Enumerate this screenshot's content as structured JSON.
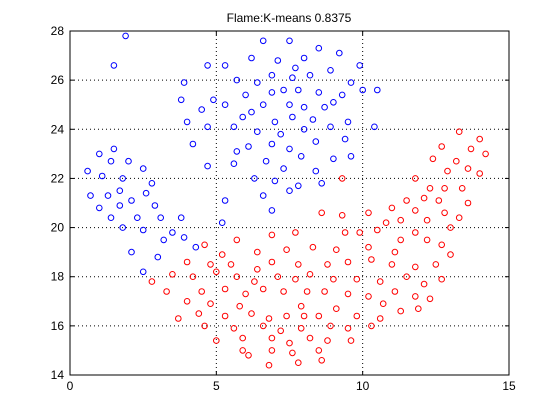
{
  "chart_data": {
    "type": "scatter",
    "title": "Flame:K-means  0.8375",
    "xlabel": "",
    "ylabel": "",
    "xlim": [
      0,
      15
    ],
    "ylim": [
      14,
      28
    ],
    "xticks": [
      0,
      5,
      10,
      15
    ],
    "yticks": [
      14,
      16,
      18,
      20,
      22,
      24,
      26,
      28
    ],
    "grid": true,
    "grid_style": "dotted",
    "marker": "open-circle",
    "series": [
      {
        "color": "#0000ff",
        "points": [
          [
            1.9,
            27.8
          ],
          [
            1.5,
            26.6
          ],
          [
            6.6,
            27.6
          ],
          [
            7.5,
            27.6
          ],
          [
            6.2,
            26.9
          ],
          [
            7.1,
            26.8
          ],
          [
            8.0,
            26.9
          ],
          [
            8.5,
            27.3
          ],
          [
            9.2,
            27.1
          ],
          [
            9.9,
            26.6
          ],
          [
            4.7,
            26.6
          ],
          [
            5.3,
            26.6
          ],
          [
            7.7,
            26.5
          ],
          [
            8.9,
            26.4
          ],
          [
            10.5,
            25.6
          ],
          [
            3.9,
            25.9
          ],
          [
            5.7,
            26.0
          ],
          [
            6.4,
            25.9
          ],
          [
            6.9,
            26.2
          ],
          [
            7.6,
            26.1
          ],
          [
            8.2,
            26.2
          ],
          [
            9.6,
            25.9
          ],
          [
            3.8,
            25.2
          ],
          [
            4.9,
            25.2
          ],
          [
            6.0,
            25.4
          ],
          [
            6.9,
            25.5
          ],
          [
            7.3,
            25.6
          ],
          [
            7.8,
            25.6
          ],
          [
            8.5,
            25.5
          ],
          [
            9.3,
            25.4
          ],
          [
            10.0,
            25.6
          ],
          [
            4.5,
            24.8
          ],
          [
            5.3,
            25.0
          ],
          [
            6.6,
            25.0
          ],
          [
            7.5,
            25.0
          ],
          [
            8.0,
            24.9
          ],
          [
            8.7,
            24.9
          ],
          [
            9.0,
            25.1
          ],
          [
            4.0,
            24.3
          ],
          [
            5.9,
            24.5
          ],
          [
            6.2,
            24.7
          ],
          [
            7.0,
            24.3
          ],
          [
            7.6,
            24.5
          ],
          [
            8.3,
            24.4
          ],
          [
            9.5,
            24.3
          ],
          [
            10.4,
            24.1
          ],
          [
            4.7,
            24.1
          ],
          [
            5.6,
            24.1
          ],
          [
            6.4,
            23.9
          ],
          [
            7.2,
            23.8
          ],
          [
            8.0,
            24.0
          ],
          [
            8.9,
            24.1
          ],
          [
            4.2,
            23.4
          ],
          [
            6.1,
            23.3
          ],
          [
            6.9,
            23.4
          ],
          [
            7.5,
            23.2
          ],
          [
            8.4,
            23.5
          ],
          [
            9.4,
            23.6
          ],
          [
            5.7,
            23.1
          ],
          [
            7.9,
            22.9
          ],
          [
            9.0,
            22.8
          ],
          [
            9.6,
            22.9
          ],
          [
            4.7,
            22.5
          ],
          [
            5.6,
            22.6
          ],
          [
            6.7,
            22.7
          ],
          [
            7.3,
            22.4
          ],
          [
            8.4,
            22.3
          ],
          [
            6.3,
            22.0
          ],
          [
            7.0,
            21.9
          ],
          [
            7.8,
            21.7
          ],
          [
            8.6,
            21.8
          ],
          [
            6.6,
            21.3
          ],
          [
            7.5,
            21.5
          ],
          [
            5.3,
            21.1
          ],
          [
            6.9,
            20.7
          ],
          [
            5.2,
            20.2
          ],
          [
            0.6,
            22.3
          ],
          [
            1.0,
            23.0
          ],
          [
            1.5,
            23.2
          ],
          [
            2.0,
            22.7
          ],
          [
            0.7,
            21.3
          ],
          [
            1.1,
            22.1
          ],
          [
            1.4,
            22.7
          ],
          [
            1.8,
            22.0
          ],
          [
            2.5,
            22.4
          ],
          [
            2.8,
            21.8
          ],
          [
            1.3,
            21.3
          ],
          [
            1.7,
            21.5
          ],
          [
            2.1,
            21.1
          ],
          [
            2.6,
            21.4
          ],
          [
            1.0,
            20.8
          ],
          [
            1.7,
            20.9
          ],
          [
            2.3,
            20.4
          ],
          [
            2.9,
            20.9
          ],
          [
            1.4,
            20.4
          ],
          [
            1.8,
            20.0
          ],
          [
            2.5,
            19.9
          ],
          [
            3.1,
            20.4
          ],
          [
            3.2,
            19.5
          ],
          [
            3.5,
            19.8
          ],
          [
            3.8,
            20.4
          ],
          [
            2.1,
            19.0
          ],
          [
            3.0,
            18.8
          ],
          [
            2.5,
            18.2
          ],
          [
            3.9,
            19.6
          ],
          [
            4.3,
            19.2
          ]
        ]
      },
      {
        "color": "#ff0000",
        "points": [
          [
            13.3,
            23.9
          ],
          [
            13.7,
            23.2
          ],
          [
            14.0,
            23.6
          ],
          [
            12.7,
            23.3
          ],
          [
            14.2,
            23.0
          ],
          [
            12.4,
            22.8
          ],
          [
            13.2,
            22.7
          ],
          [
            12.9,
            22.3
          ],
          [
            13.6,
            22.4
          ],
          [
            14.0,
            22.2
          ],
          [
            11.8,
            22.0
          ],
          [
            12.3,
            21.6
          ],
          [
            12.8,
            21.6
          ],
          [
            13.4,
            21.6
          ],
          [
            9.3,
            22.0
          ],
          [
            11.5,
            21.1
          ],
          [
            12.1,
            21.2
          ],
          [
            12.6,
            21.1
          ],
          [
            13.6,
            21.0
          ],
          [
            11.0,
            20.8
          ],
          [
            11.8,
            20.7
          ],
          [
            12.2,
            20.3
          ],
          [
            12.8,
            20.6
          ],
          [
            13.3,
            20.4
          ],
          [
            8.6,
            20.6
          ],
          [
            9.3,
            20.5
          ],
          [
            10.2,
            20.6
          ],
          [
            10.8,
            20.2
          ],
          [
            11.3,
            20.3
          ],
          [
            13.0,
            20.0
          ],
          [
            9.9,
            19.8
          ],
          [
            10.5,
            19.9
          ],
          [
            11.3,
            19.5
          ],
          [
            11.8,
            19.8
          ],
          [
            12.2,
            19.5
          ],
          [
            12.7,
            19.3
          ],
          [
            4.6,
            19.3
          ],
          [
            5.2,
            18.9
          ],
          [
            6.4,
            19.0
          ],
          [
            7.4,
            19.1
          ],
          [
            8.3,
            19.2
          ],
          [
            9.1,
            19.1
          ],
          [
            10.2,
            19.2
          ],
          [
            5.7,
            19.5
          ],
          [
            6.9,
            19.7
          ],
          [
            7.7,
            19.8
          ],
          [
            9.4,
            19.8
          ],
          [
            11.1,
            19.0
          ],
          [
            4.0,
            18.6
          ],
          [
            4.8,
            18.5
          ],
          [
            5.5,
            18.5
          ],
          [
            6.4,
            18.3
          ],
          [
            6.9,
            18.6
          ],
          [
            7.8,
            18.5
          ],
          [
            8.8,
            18.5
          ],
          [
            9.5,
            18.6
          ],
          [
            10.3,
            18.7
          ],
          [
            11.0,
            18.5
          ],
          [
            11.8,
            18.4
          ],
          [
            12.5,
            18.5
          ],
          [
            13.0,
            18.9
          ],
          [
            3.5,
            18.1
          ],
          [
            4.2,
            18.0
          ],
          [
            5.0,
            18.2
          ],
          [
            5.7,
            18.0
          ],
          [
            6.3,
            17.8
          ],
          [
            7.1,
            18.0
          ],
          [
            7.7,
            17.9
          ],
          [
            8.2,
            18.1
          ],
          [
            9.0,
            17.9
          ],
          [
            9.8,
            17.9
          ],
          [
            10.6,
            17.8
          ],
          [
            11.5,
            18.0
          ],
          [
            12.1,
            17.7
          ],
          [
            12.7,
            17.9
          ],
          [
            2.8,
            17.8
          ],
          [
            3.3,
            17.4
          ],
          [
            4.5,
            17.4
          ],
          [
            5.3,
            17.5
          ],
          [
            6.0,
            17.3
          ],
          [
            6.6,
            17.5
          ],
          [
            7.3,
            17.4
          ],
          [
            8.1,
            17.4
          ],
          [
            8.7,
            17.4
          ],
          [
            9.5,
            17.3
          ],
          [
            10.2,
            17.2
          ],
          [
            11.1,
            17.4
          ],
          [
            11.8,
            17.2
          ],
          [
            12.3,
            17.1
          ],
          [
            4.0,
            17.0
          ],
          [
            4.8,
            16.9
          ],
          [
            5.8,
            16.8
          ],
          [
            7.9,
            16.8
          ],
          [
            9.1,
            16.7
          ],
          [
            10.7,
            16.9
          ],
          [
            11.9,
            16.7
          ],
          [
            3.7,
            16.3
          ],
          [
            4.4,
            16.5
          ],
          [
            5.3,
            16.4
          ],
          [
            6.2,
            16.5
          ],
          [
            6.8,
            16.3
          ],
          [
            7.4,
            16.4
          ],
          [
            8.0,
            16.4
          ],
          [
            8.5,
            16.4
          ],
          [
            9.8,
            16.4
          ],
          [
            10.6,
            16.3
          ],
          [
            11.3,
            16.6
          ],
          [
            4.6,
            16.0
          ],
          [
            5.6,
            15.9
          ],
          [
            6.6,
            16.0
          ],
          [
            7.2,
            15.8
          ],
          [
            7.9,
            15.9
          ],
          [
            8.9,
            16.0
          ],
          [
            9.5,
            15.9
          ],
          [
            10.3,
            16.0
          ],
          [
            5.0,
            15.4
          ],
          [
            5.9,
            15.5
          ],
          [
            6.9,
            15.5
          ],
          [
            7.5,
            15.3
          ],
          [
            8.2,
            15.5
          ],
          [
            8.8,
            15.4
          ],
          [
            9.6,
            15.4
          ],
          [
            5.9,
            15.0
          ],
          [
            6.9,
            15.0
          ],
          [
            7.6,
            14.9
          ],
          [
            8.5,
            15.0
          ],
          [
            6.1,
            14.8
          ],
          [
            6.8,
            14.4
          ],
          [
            7.8,
            14.5
          ],
          [
            8.6,
            14.6
          ]
        ]
      }
    ]
  }
}
